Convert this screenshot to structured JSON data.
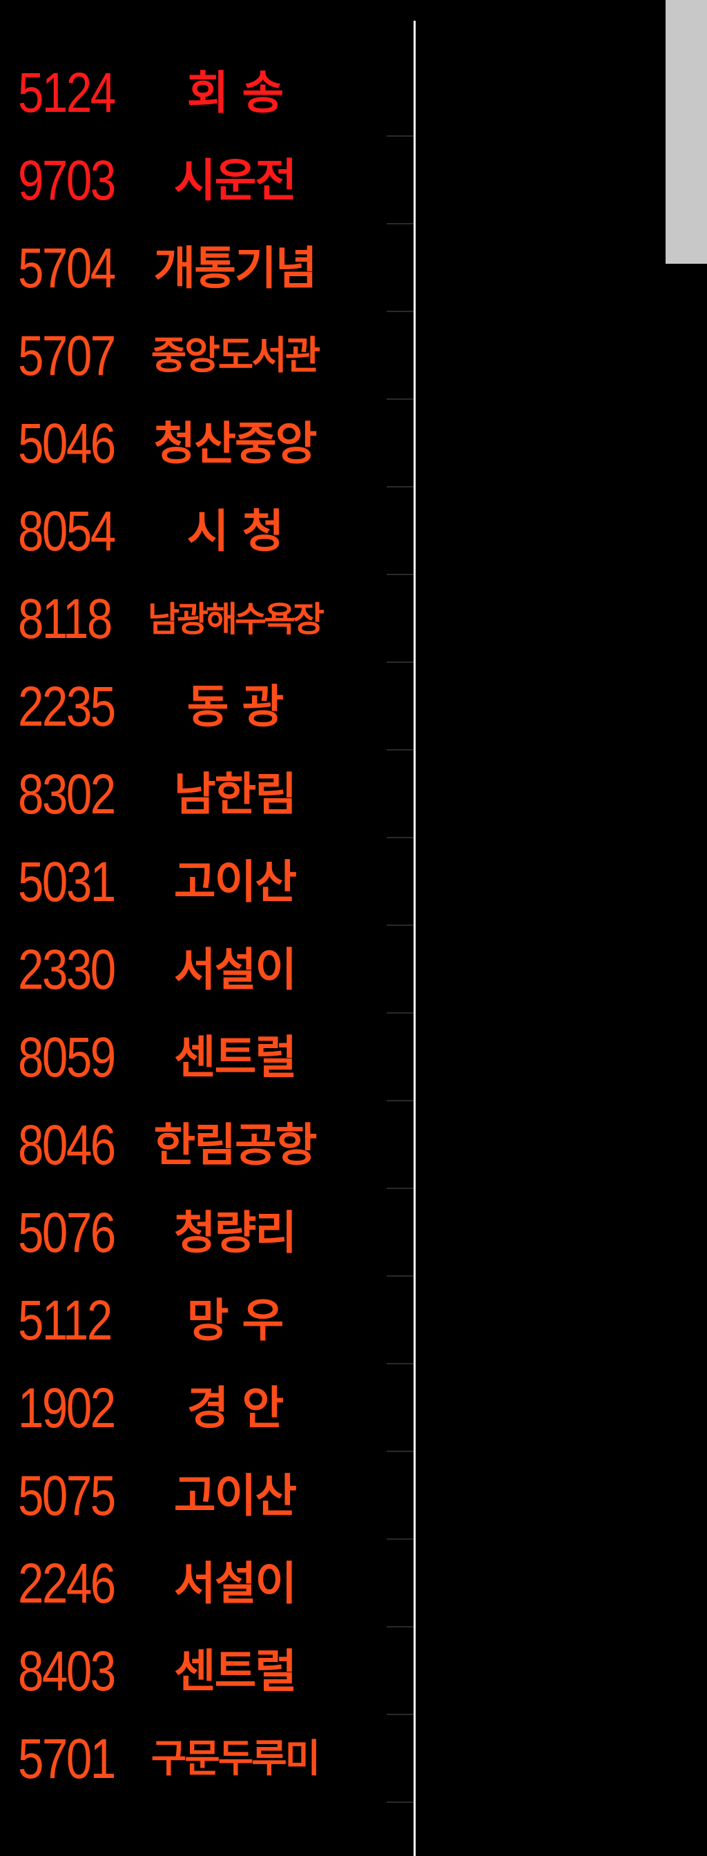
{
  "colors": {
    "background": "#000000",
    "accent_red": "#ff1a1a",
    "accent_orange": "#ff4d1a",
    "divider": "#ffffff",
    "scrollbar": "#c8c8c8"
  },
  "routes": [
    {
      "code": "5124",
      "name": "회 송",
      "color": "#ff1a1a"
    },
    {
      "code": "9703",
      "name": "시운전",
      "color": "#ff1a1a"
    },
    {
      "code": "5704",
      "name": "개통기념",
      "color": "#ff4d1a"
    },
    {
      "code": "5707",
      "name": "중앙도서관",
      "color": "#ff4d1a"
    },
    {
      "code": "5046",
      "name": "청산중앙",
      "color": "#ff4d1a"
    },
    {
      "code": "8054",
      "name": "시 청",
      "color": "#ff4d1a"
    },
    {
      "code": "8118",
      "name": "남광해수욕장",
      "color": "#ff4d1a"
    },
    {
      "code": "2235",
      "name": "동 광",
      "color": "#ff4d1a"
    },
    {
      "code": "8302",
      "name": "남한림",
      "color": "#ff4d1a"
    },
    {
      "code": "5031",
      "name": "고이산",
      "color": "#ff4d1a"
    },
    {
      "code": "2330",
      "name": "서설이",
      "color": "#ff4d1a"
    },
    {
      "code": "8059",
      "name": "센트럴",
      "color": "#ff4d1a"
    },
    {
      "code": "8046",
      "name": "한림공항",
      "color": "#ff4d1a"
    },
    {
      "code": "5076",
      "name": "청량리",
      "color": "#ff4d1a"
    },
    {
      "code": "5112",
      "name": "망 우",
      "color": "#ff4d1a"
    },
    {
      "code": "1902",
      "name": "경 안",
      "color": "#ff4d1a"
    },
    {
      "code": "5075",
      "name": "고이산",
      "color": "#ff4d1a"
    },
    {
      "code": "2246",
      "name": "서설이",
      "color": "#ff4d1a"
    },
    {
      "code": "8403",
      "name": "센트럴",
      "color": "#ff4d1a"
    },
    {
      "code": "5701",
      "name": "구문두루미",
      "color": "#ff4d1a"
    }
  ]
}
